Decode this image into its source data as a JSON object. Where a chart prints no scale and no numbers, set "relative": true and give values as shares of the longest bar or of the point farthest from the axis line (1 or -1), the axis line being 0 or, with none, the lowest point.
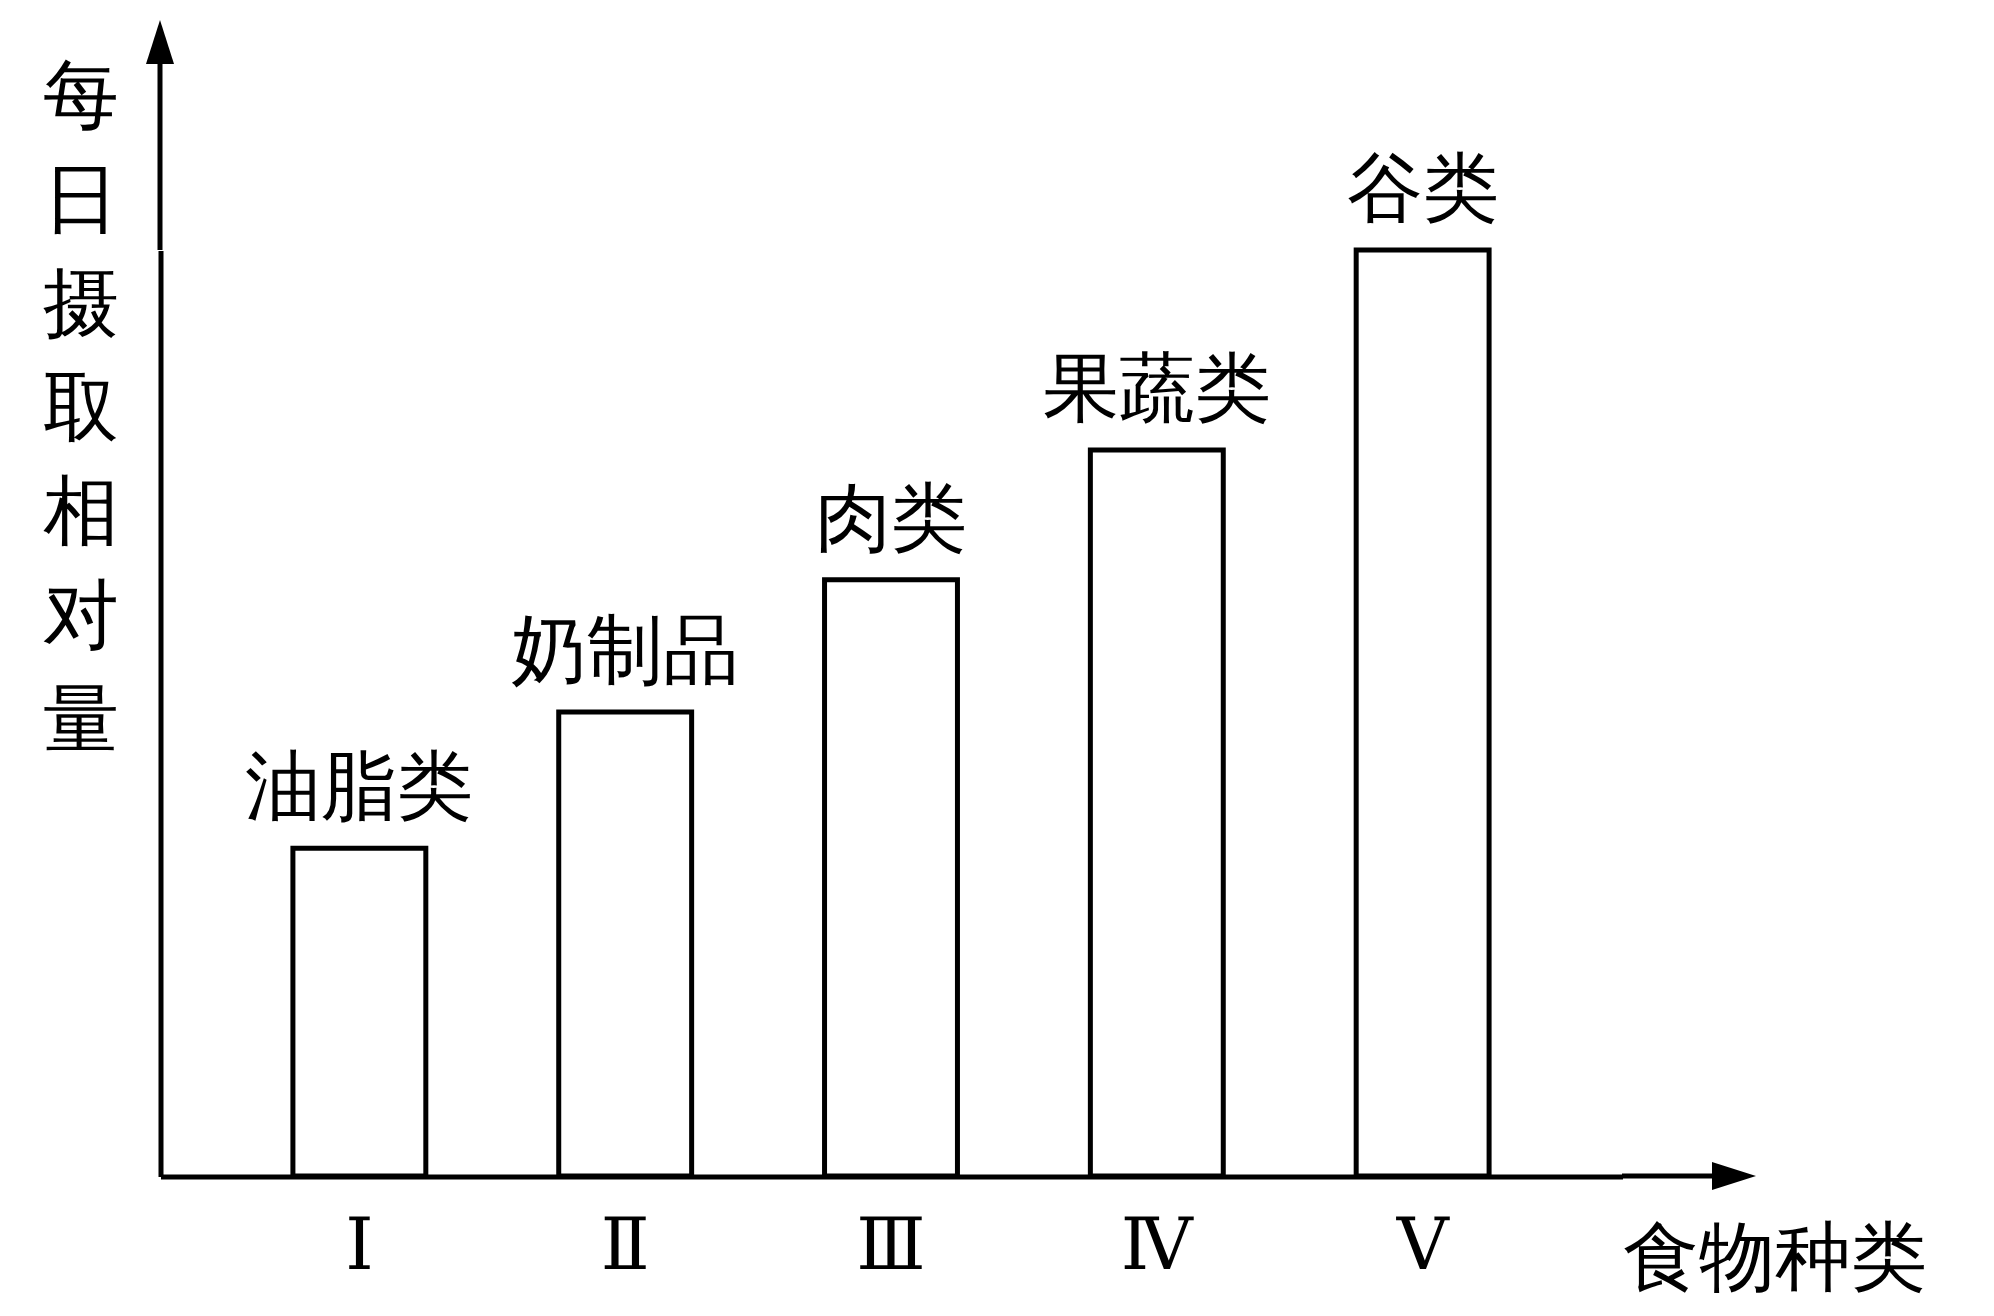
{
  "chart_data": {
    "type": "bar",
    "xlabel": "食物种类",
    "ylabel": "每日摄取相对量",
    "categories": [
      "Ⅰ",
      "Ⅱ",
      "Ⅲ",
      "Ⅳ",
      "Ⅴ"
    ],
    "values": [
      0.354,
      0.501,
      0.644,
      0.784,
      1
    ],
    "color": "#ffffff",
    "relative": true,
    "grid": false,
    "annotations": [
      {
        "text": "油脂类",
        "x": "Ⅰ",
        "y": 0.354
      },
      {
        "text": "奶制品",
        "x": "Ⅱ",
        "y": 0.501
      },
      {
        "text": "肉类",
        "x": "Ⅲ",
        "y": 0.644
      },
      {
        "text": "果蔬类",
        "x": "Ⅳ",
        "y": 0.784
      },
      {
        "text": "谷类",
        "x": "Ⅴ",
        "y": 1
      }
    ]
  }
}
